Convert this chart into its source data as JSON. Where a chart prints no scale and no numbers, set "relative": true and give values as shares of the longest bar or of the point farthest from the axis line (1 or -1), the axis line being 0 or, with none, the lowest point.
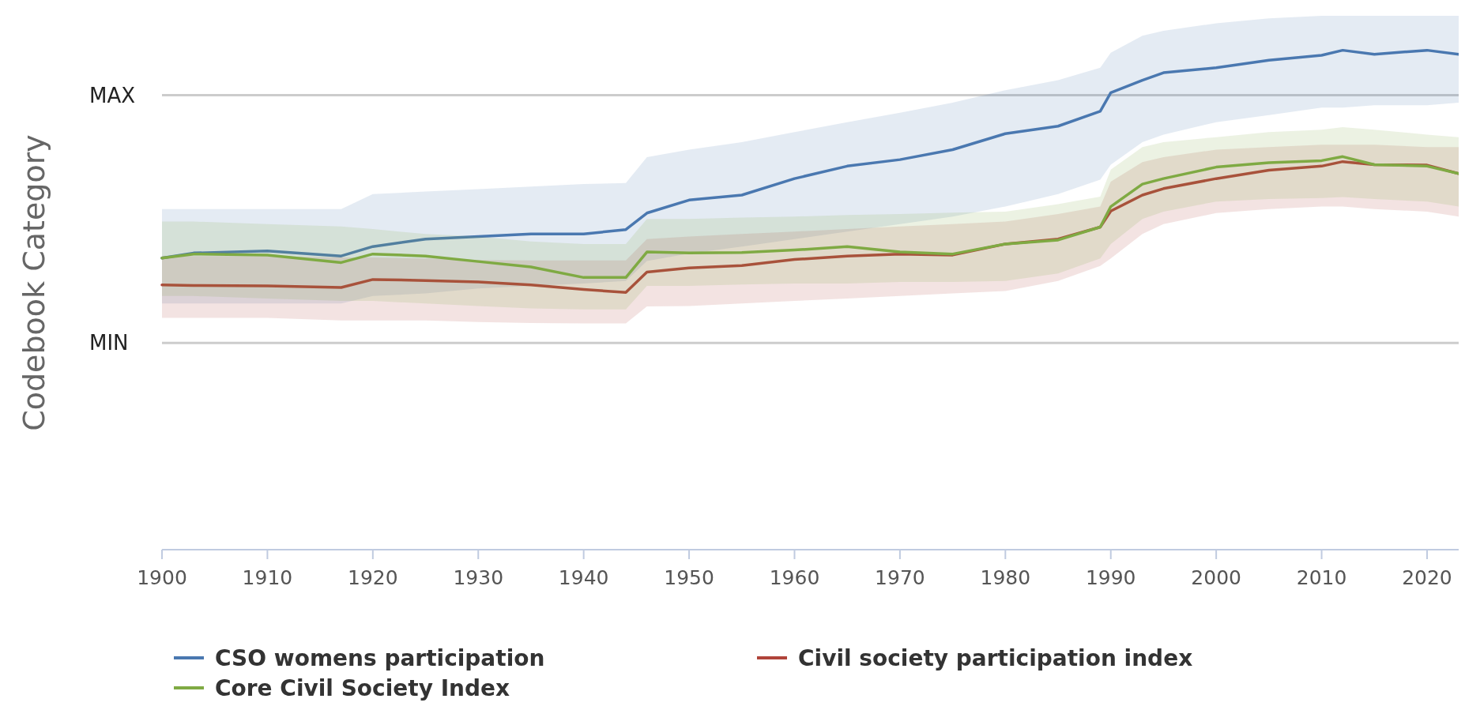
{
  "chart_data": {
    "type": "line",
    "ylabel": "Codebook Category",
    "relative": true,
    "x": [
      1900,
      1903,
      1910,
      1917,
      1920,
      1925,
      1930,
      1935,
      1940,
      1944,
      1946,
      1950,
      1955,
      1960,
      1965,
      1970,
      1975,
      1980,
      1985,
      1989,
      1990,
      1993,
      1995,
      2000,
      2005,
      2010,
      2012,
      2015,
      2020,
      2023
    ],
    "xlim": [
      1900,
      2023
    ],
    "xticks": [
      1900,
      1910,
      1920,
      1930,
      1940,
      1950,
      1960,
      1970,
      1980,
      1990,
      2000,
      2010,
      2020
    ],
    "ref_lines": [
      {
        "axis": "y",
        "value": 0.91,
        "label": "MAX",
        "color": "#cccccc"
      },
      {
        "axis": "y",
        "value": 0.414,
        "label": "MIN",
        "color": "#cccccc"
      }
    ],
    "legend": "bottom",
    "series": [
      {
        "name": "CSO womens participation",
        "color": "#4a78b0",
        "values": [
          0.584,
          0.594,
          0.598,
          0.588,
          0.607,
          0.622,
          0.627,
          0.632,
          0.632,
          0.641,
          0.674,
          0.7,
          0.71,
          0.743,
          0.768,
          0.781,
          0.801,
          0.833,
          0.848,
          0.878,
          0.915,
          0.94,
          0.955,
          0.965,
          0.98,
          0.99,
          1.0,
          0.992,
          1.0,
          0.992
        ],
        "lower": [
          0.493,
          0.493,
          0.493,
          0.493,
          0.508,
          0.513,
          0.523,
          0.528,
          0.533,
          0.538,
          0.578,
          0.593,
          0.607,
          0.622,
          0.637,
          0.652,
          0.667,
          0.687,
          0.712,
          0.741,
          0.771,
          0.816,
          0.831,
          0.856,
          0.87,
          0.885,
          0.885,
          0.89,
          0.89,
          0.895
        ],
        "upper": [
          0.682,
          0.682,
          0.682,
          0.682,
          0.712,
          0.717,
          0.722,
          0.727,
          0.732,
          0.734,
          0.786,
          0.801,
          0.816,
          0.836,
          0.856,
          0.875,
          0.895,
          0.92,
          0.94,
          0.965,
          0.995,
          1.029,
          1.039,
          1.054,
          1.064,
          1.069,
          1.069,
          1.069,
          1.069,
          1.069
        ]
      },
      {
        "name": "Civil society participation index",
        "color": "#b0443a",
        "values": [
          0.53,
          0.529,
          0.528,
          0.525,
          0.541,
          0.539,
          0.536,
          0.53,
          0.521,
          0.515,
          0.556,
          0.564,
          0.569,
          0.581,
          0.588,
          0.592,
          0.59,
          0.612,
          0.622,
          0.646,
          0.678,
          0.71,
          0.723,
          0.743,
          0.76,
          0.768,
          0.777,
          0.771,
          0.77,
          0.753
        ],
        "lower": [
          0.464,
          0.464,
          0.464,
          0.459,
          0.459,
          0.459,
          0.456,
          0.454,
          0.453,
          0.453,
          0.487,
          0.488,
          0.493,
          0.498,
          0.503,
          0.508,
          0.513,
          0.518,
          0.538,
          0.568,
          0.583,
          0.632,
          0.652,
          0.674,
          0.682,
          0.687,
          0.687,
          0.682,
          0.677,
          0.667
        ],
        "upper": [
          0.588,
          0.588,
          0.588,
          0.585,
          0.585,
          0.583,
          0.58,
          0.579,
          0.579,
          0.579,
          0.622,
          0.627,
          0.632,
          0.637,
          0.642,
          0.647,
          0.652,
          0.657,
          0.672,
          0.687,
          0.737,
          0.776,
          0.786,
          0.801,
          0.806,
          0.811,
          0.811,
          0.811,
          0.806,
          0.806
        ]
      },
      {
        "name": "Core Civil Society Index",
        "color": "#7faa43",
        "values": [
          0.584,
          0.592,
          0.59,
          0.575,
          0.592,
          0.588,
          0.577,
          0.566,
          0.545,
          0.545,
          0.596,
          0.594,
          0.595,
          0.6,
          0.607,
          0.596,
          0.592,
          0.612,
          0.62,
          0.646,
          0.687,
          0.732,
          0.743,
          0.766,
          0.775,
          0.779,
          0.787,
          0.771,
          0.768,
          0.753
        ],
        "lower": [
          0.508,
          0.508,
          0.503,
          0.498,
          0.498,
          0.493,
          0.488,
          0.483,
          0.481,
          0.481,
          0.528,
          0.528,
          0.531,
          0.533,
          0.533,
          0.536,
          0.536,
          0.538,
          0.553,
          0.583,
          0.612,
          0.662,
          0.677,
          0.697,
          0.702,
          0.704,
          0.706,
          0.702,
          0.697,
          0.687
        ],
        "upper": [
          0.657,
          0.657,
          0.652,
          0.647,
          0.642,
          0.632,
          0.627,
          0.617,
          0.612,
          0.612,
          0.662,
          0.662,
          0.665,
          0.667,
          0.67,
          0.672,
          0.675,
          0.677,
          0.692,
          0.707,
          0.761,
          0.806,
          0.816,
          0.826,
          0.836,
          0.841,
          0.846,
          0.841,
          0.831,
          0.826
        ]
      }
    ]
  }
}
